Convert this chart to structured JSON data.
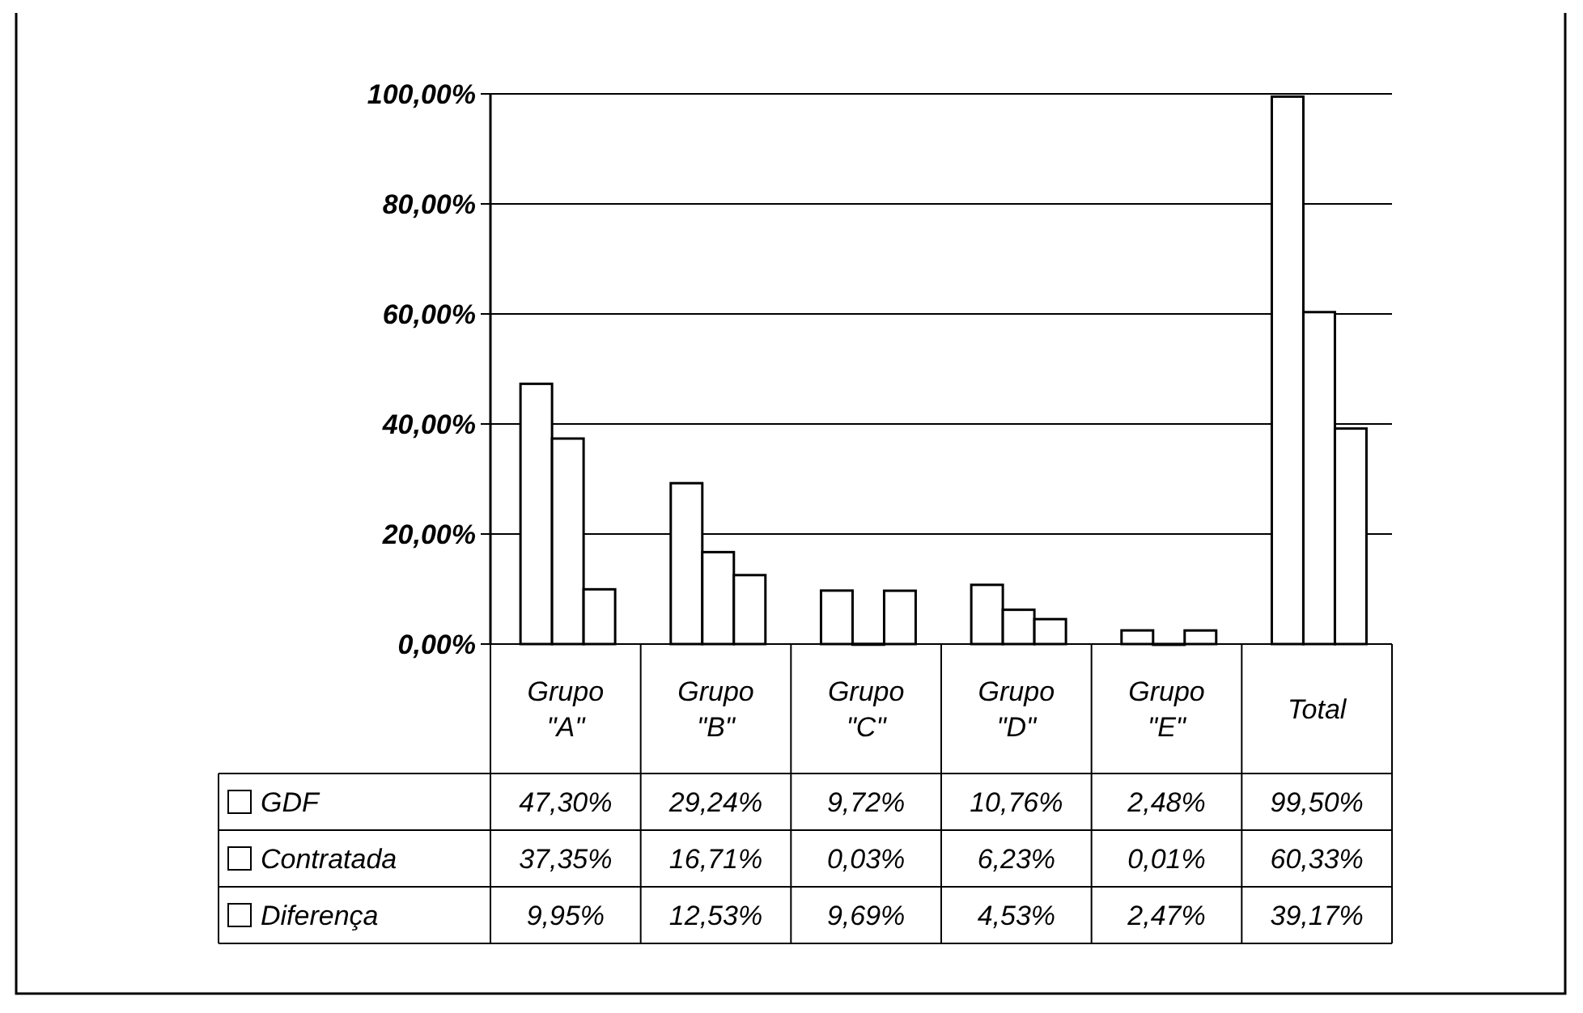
{
  "chart_data": {
    "type": "bar",
    "categories": [
      "Grupo \"A\"",
      "Grupo \"B\"",
      "Grupo \"C\"",
      "Grupo \"D\"",
      "Grupo \"E\"",
      "Total"
    ],
    "series": [
      {
        "name": "GDF",
        "color": "#ffffff",
        "values": [
          47.3,
          29.24,
          9.72,
          10.76,
          2.48,
          99.5
        ],
        "value_labels": [
          "47,30%",
          "29,24%",
          "9,72%",
          "10,76%",
          "2,48%",
          "99,50%"
        ]
      },
      {
        "name": "Contratada",
        "color": "#ffffff",
        "values": [
          37.35,
          16.71,
          0.03,
          6.23,
          0.01,
          60.33
        ],
        "value_labels": [
          "37,35%",
          "16,71%",
          "0,03%",
          "6,23%",
          "0,01%",
          "60,33%"
        ]
      },
      {
        "name": "Diferença",
        "color": "#ffffff",
        "values": [
          9.95,
          12.53,
          9.69,
          4.53,
          2.47,
          39.17
        ],
        "value_labels": [
          "9,95%",
          "12,53%",
          "9,69%",
          "4,53%",
          "2,47%",
          "39,17%"
        ]
      }
    ],
    "ylim": [
      0,
      100
    ],
    "yticks": [
      {
        "value": 0,
        "label": "0,00%"
      },
      {
        "value": 20,
        "label": "20,00%"
      },
      {
        "value": 40,
        "label": "40,00%"
      },
      {
        "value": 60,
        "label": "60,00%"
      },
      {
        "value": 80,
        "label": "80,00%"
      },
      {
        "value": 100,
        "label": "100,00%"
      }
    ],
    "grid": "y",
    "legend": "bottom"
  }
}
